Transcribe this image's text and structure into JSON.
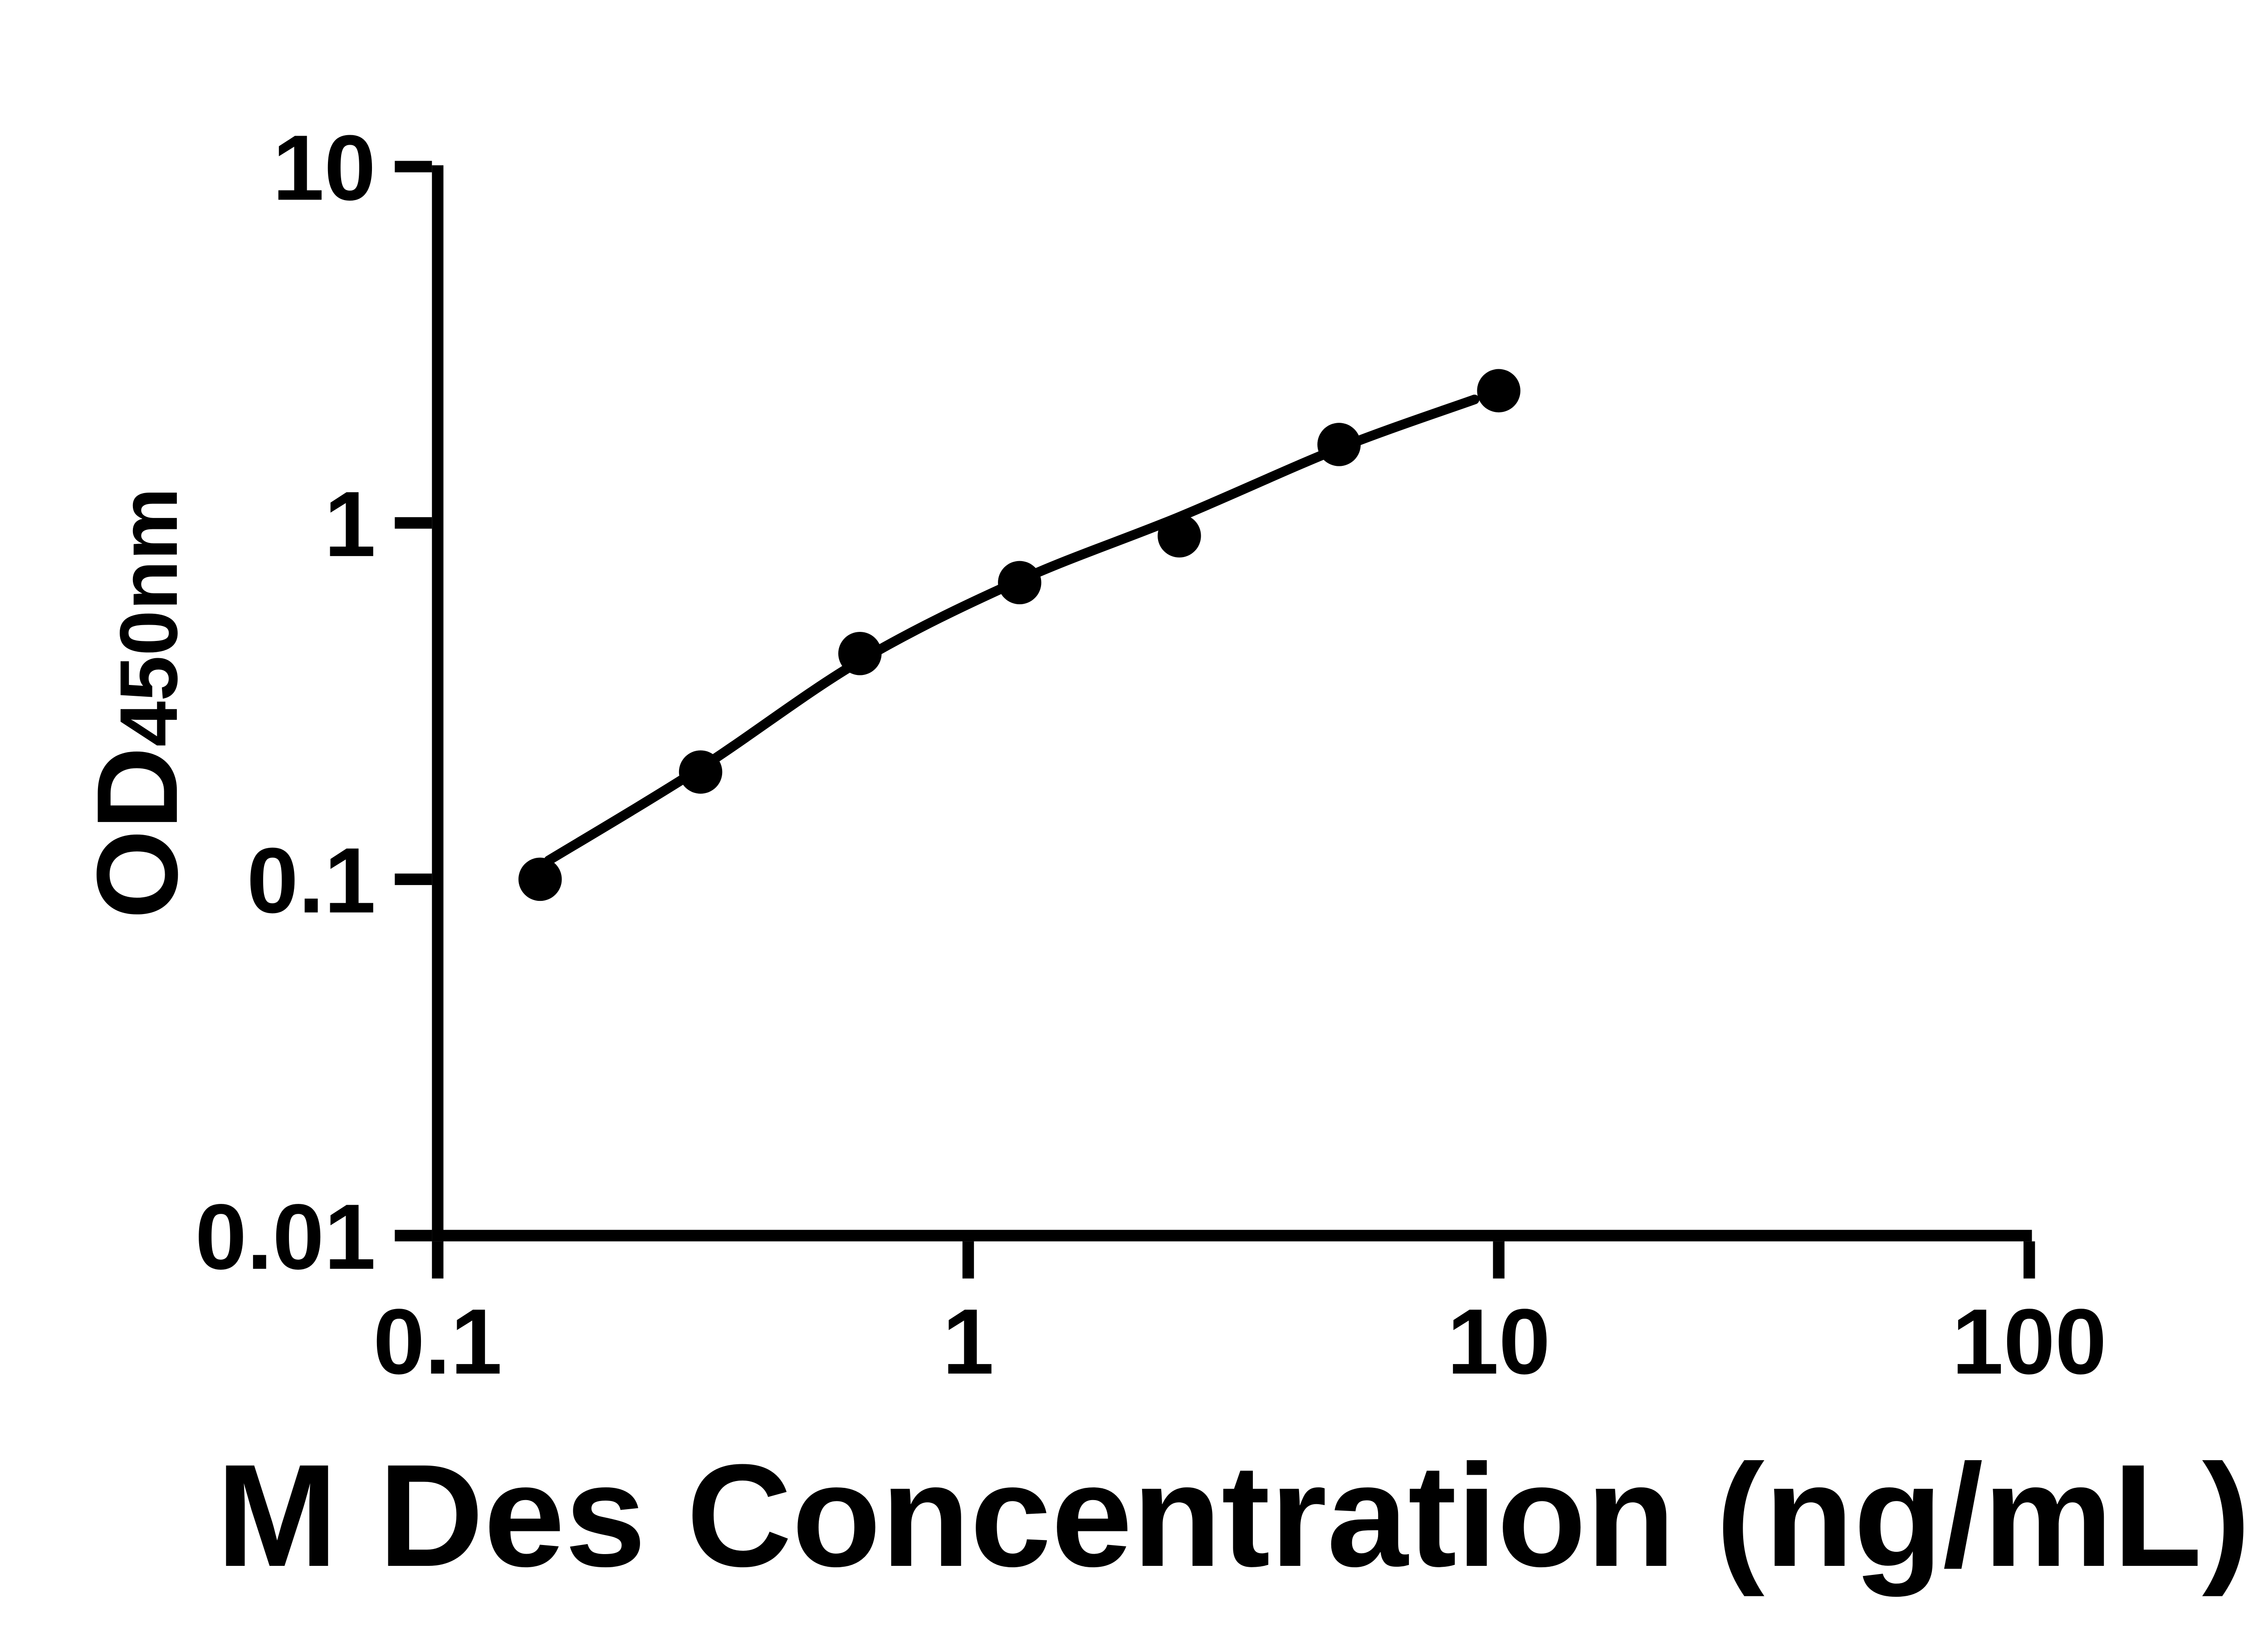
{
  "page": {
    "background_color": "#ffffff",
    "ink_color": "#000000"
  },
  "chart_data": {
    "type": "scatter",
    "title": "",
    "xlabel": "M Des Concentration (ng/mL)",
    "ylabel": "OD",
    "ylabel_subscript": "450nm",
    "x_scale": "log",
    "y_scale": "log",
    "xlim": [
      0.1,
      100
    ],
    "ylim": [
      0.01,
      10
    ],
    "grid": false,
    "legend": false,
    "marker_color": "#000000",
    "line_color": "#000000",
    "x_ticks": [
      {
        "value": 0.1,
        "label": "0.1"
      },
      {
        "value": 1,
        "label": "1"
      },
      {
        "value": 10,
        "label": "10"
      },
      {
        "value": 100,
        "label": "100"
      }
    ],
    "y_ticks": [
      {
        "value": 10,
        "label": "10"
      },
      {
        "value": 1,
        "label": "1"
      },
      {
        "value": 0.1,
        "label": "0.1"
      },
      {
        "value": 0.01,
        "label": "0.01"
      }
    ],
    "points": [
      {
        "x": 0.156,
        "y": 0.1
      },
      {
        "x": 0.313,
        "y": 0.2
      },
      {
        "x": 0.625,
        "y": 0.43
      },
      {
        "x": 1.25,
        "y": 0.68
      },
      {
        "x": 2.5,
        "y": 0.92
      },
      {
        "x": 5,
        "y": 1.66
      },
      {
        "x": 10,
        "y": 2.35
      }
    ],
    "fit_curve": [
      {
        "x": 0.162,
        "y": 0.113
      },
      {
        "x": 0.3125,
        "y": 0.205
      },
      {
        "x": 0.625,
        "y": 0.41
      },
      {
        "x": 1.25,
        "y": 0.69
      },
      {
        "x": 2.5,
        "y": 1.04
      },
      {
        "x": 5,
        "y": 1.62
      },
      {
        "x": 9.0,
        "y": 2.22
      }
    ]
  }
}
